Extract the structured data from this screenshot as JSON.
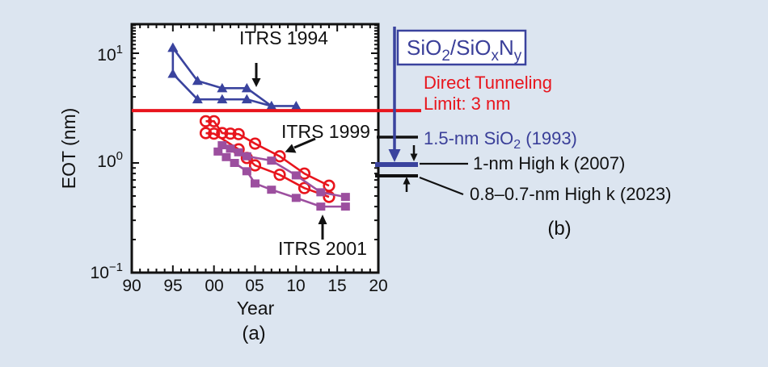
{
  "colors": {
    "background": "#dce5f0",
    "plot_background": "#ffffff",
    "axis": "#111111",
    "blue_series": "#3a439e",
    "red_series": "#e8151d",
    "purple_series": "#9c4f9f",
    "blue_label": "#3a3f99"
  },
  "panel_a": {
    "ylabel": "EOT (nm)",
    "xlabel": "Year",
    "caption": "(a)",
    "y_tick_base": "10",
    "y_tick_exps": [
      "1",
      "0",
      "−1"
    ]
  },
  "annotations": {
    "itrs1994": "ITRS 1994",
    "itrs1999": "ITRS 1999",
    "itrs2001": "ITRS 2001"
  },
  "panel_b": {
    "caption": "(b)",
    "box": {
      "t1": "SiO",
      "sub1": "2",
      "t2": "/SiO",
      "sub2": "x",
      "t3": "N",
      "sub3": "y"
    },
    "direct_tunneling_line1": "Direct Tunneling",
    "direct_tunneling_line2": "Limit: 3 nm",
    "sio2_1993": {
      "t1": "1.5-nm SiO",
      "sub1": "2",
      "t2": " (1993)"
    },
    "highk_2007": "1-nm High k (2007)",
    "highk_2023": "0.8–0.7-nm High k (2023)"
  },
  "chart_data": {
    "type": "line",
    "title": "",
    "xlabel": "Year",
    "ylabel": "EOT (nm)",
    "x_range": [
      1990,
      2020
    ],
    "y_range": [
      0.1,
      18.5
    ],
    "y_scale": "log",
    "x_major_ticks": [
      1990,
      1995,
      2000,
      2005,
      2010,
      2015,
      2020
    ],
    "x_tick_labels": [
      "90",
      "95",
      "00",
      "05",
      "10",
      "15",
      "20"
    ],
    "x_minor_step": 1,
    "y_major_ticks": [
      0.1,
      1,
      10
    ],
    "y_minor_ticks": [
      0.2,
      0.3,
      0.4,
      0.5,
      0.6,
      0.7,
      0.8,
      0.9,
      2,
      3,
      4,
      5,
      6,
      7,
      8,
      9,
      11,
      12,
      13,
      14,
      15,
      16,
      17,
      18
    ],
    "reference_line": {
      "value": 3,
      "label": "Direct Tunneling Limit: 3 nm",
      "color": "#e8151d"
    },
    "series": [
      {
        "name": "ITRS 1994 upper",
        "marker": "triangle",
        "color": "#3a439e",
        "points": [
          [
            1995,
            11.2
          ],
          [
            1998,
            5.6
          ],
          [
            2001,
            4.8
          ],
          [
            2004,
            4.8
          ],
          [
            2007,
            3.3
          ],
          [
            2010,
            3.3
          ]
        ]
      },
      {
        "name": "ITRS 1994 lower",
        "marker": "triangle",
        "color": "#3a439e",
        "points": [
          [
            1995,
            11.2
          ],
          [
            1995,
            6.5
          ],
          [
            1998,
            3.8
          ],
          [
            2001,
            3.8
          ],
          [
            2004,
            3.8
          ],
          [
            2007,
            3.3
          ]
        ]
      },
      {
        "name": "ITRS 1999 max",
        "marker": "circle",
        "color": "#e8151d",
        "points": [
          [
            1999,
            2.4
          ],
          [
            2000,
            2.4
          ],
          [
            2001,
            1.87
          ],
          [
            2002,
            1.85
          ],
          [
            2003,
            1.83
          ],
          [
            2005,
            1.5
          ],
          [
            2008,
            1.15
          ],
          [
            2011,
            0.8
          ],
          [
            2014,
            0.62
          ]
        ]
      },
      {
        "name": "ITRS 1999 min",
        "marker": "circle",
        "color": "#e8151d",
        "points": [
          [
            1999,
            1.87
          ],
          [
            2000,
            1.85
          ],
          [
            2003,
            1.33
          ],
          [
            2004,
            1.11
          ],
          [
            2005,
            0.95
          ],
          [
            2008,
            0.78
          ],
          [
            2011,
            0.59
          ],
          [
            2014,
            0.49
          ]
        ]
      },
      {
        "name": "ITRS 2001 max",
        "marker": "square",
        "color": "#9c4f9f",
        "points": [
          [
            2001,
            1.45
          ],
          [
            2002,
            1.35
          ],
          [
            2003,
            1.25
          ],
          [
            2004,
            1.15
          ],
          [
            2007,
            1.05
          ],
          [
            2010,
            0.77
          ],
          [
            2013,
            0.54
          ],
          [
            2016,
            0.49
          ]
        ]
      },
      {
        "name": "ITRS 2001 min",
        "marker": "square",
        "color": "#9c4f9f",
        "points": [
          [
            2000.5,
            1.27
          ],
          [
            2001.5,
            1.13
          ],
          [
            2002.5,
            1.0
          ],
          [
            2004,
            0.84
          ],
          [
            2005,
            0.65
          ],
          [
            2007,
            0.57
          ],
          [
            2010,
            0.48
          ],
          [
            2013,
            0.4
          ],
          [
            2016,
            0.4
          ]
        ]
      }
    ]
  }
}
